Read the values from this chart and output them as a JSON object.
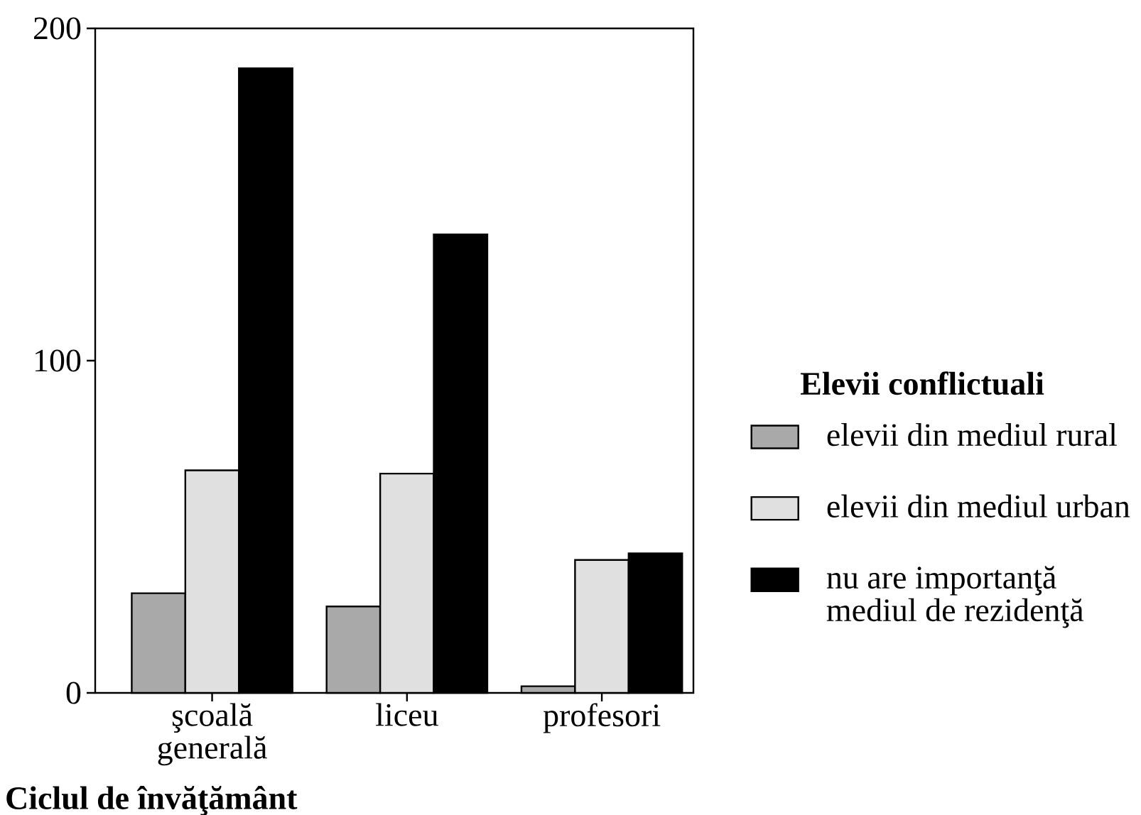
{
  "chart_data": {
    "type": "bar",
    "xlabel": "Ciclul de învăţământ",
    "legend_title": "Elevii conflictuali",
    "legend": "right",
    "categories": [
      "şcoală generală",
      "liceu",
      "profesori"
    ],
    "series": [
      {
        "name": "elevii din mediul rural",
        "color": "#a9a9a9",
        "values": [
          30,
          26,
          2
        ]
      },
      {
        "name": "elevii din mediul urban",
        "color": "#e0e0e0",
        "values": [
          67,
          66,
          40
        ]
      },
      {
        "name": "nu are importanţă mediul de rezidenţă",
        "color": "#000000",
        "values": [
          188,
          138,
          42
        ]
      }
    ],
    "ylim": [
      0,
      200
    ],
    "yticks": [
      0,
      100,
      200
    ]
  }
}
